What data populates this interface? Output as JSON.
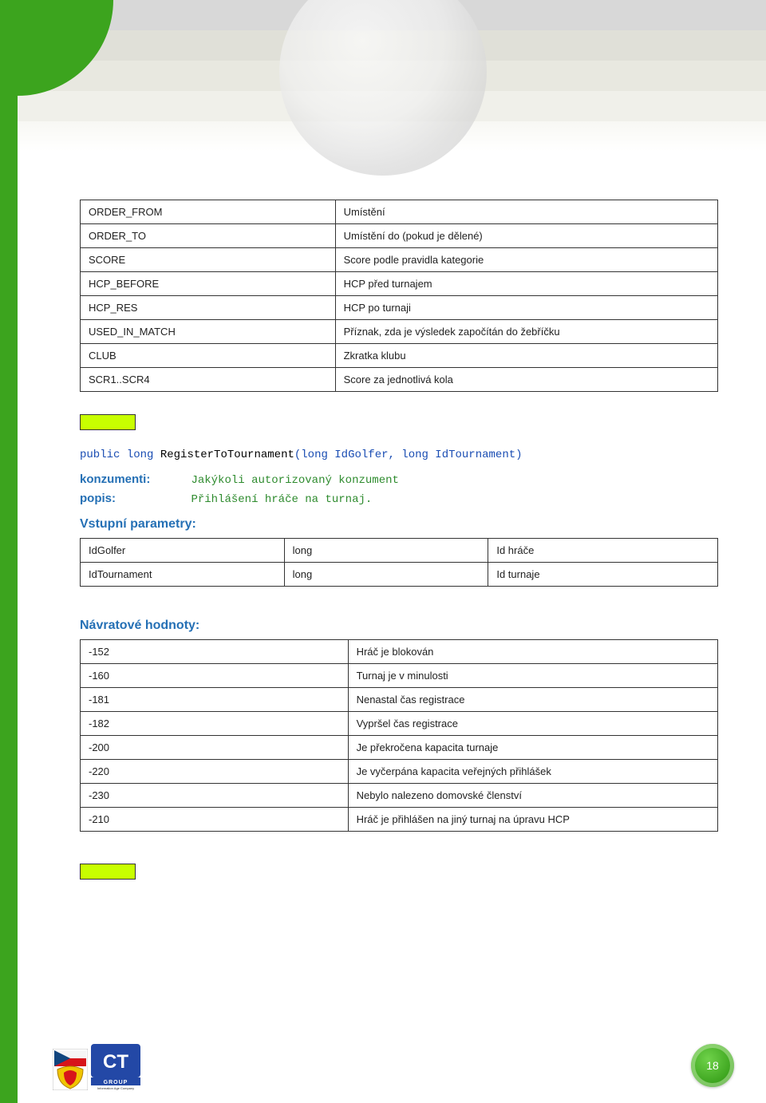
{
  "colors": {
    "left_border": "#3ca41e",
    "highlight_bar": "#c8ff00",
    "section_title": "#2570b5",
    "code_keyword": "#1a4db3",
    "code_mono_green": "#2e8b2e",
    "table_border": "#333333",
    "text": "#222222"
  },
  "table1": {
    "rows": [
      {
        "col1": "ORDER_FROM",
        "col2": "Umístění"
      },
      {
        "col1": "ORDER_TO",
        "col2": "Umístění do (pokud je dělené)"
      },
      {
        "col1": "SCORE",
        "col2": "Score podle pravidla kategorie"
      },
      {
        "col1": "HCP_BEFORE",
        "col2": "HCP před turnajem"
      },
      {
        "col1": "HCP_RES",
        "col2": "HCP po turnaji"
      },
      {
        "col1": "USED_IN_MATCH",
        "col2": "Příznak, zda je výsledek započítán do žebříčku"
      },
      {
        "col1": "CLUB",
        "col2": "Zkratka klubu"
      },
      {
        "col1": "SCR1..SCR4",
        "col2": "Score za jednotlivá kola"
      }
    ],
    "col1_width_pct": 40
  },
  "method": {
    "signature_html_parts": {
      "public": "public",
      "ret_type": "long",
      "name": "RegisterToTournament",
      "params": "(long IdGolfer, long IdTournament)"
    },
    "konzumenti_label": "konzumenti:",
    "konzumenti_val": "Jakýkoli autorizovaný konzument",
    "popis_label": "popis:",
    "popis_val": "Přihlášení hráče na turnaj."
  },
  "inputs_title": "Vstupní parametry:",
  "inputs": {
    "rows": [
      {
        "c1": "IdGolfer",
        "c2": "long",
        "c3": "Id hráče"
      },
      {
        "c1": "IdTournament",
        "c2": "long",
        "c3": "Id turnaje"
      }
    ],
    "col_widths_pct": [
      32,
      32,
      36
    ]
  },
  "returns_title": "Návratové hodnoty:",
  "returns": {
    "rows": [
      {
        "c1": "-152",
        "c2": "Hráč je blokován"
      },
      {
        "c1": "-160",
        "c2": "Turnaj je v minulosti"
      },
      {
        "c1": "-181",
        "c2": "Nenastal čas registrace"
      },
      {
        "c1": "-182",
        "c2": "Vypršel čas registrace"
      },
      {
        "c1": "-200",
        "c2": "Je překročena kapacita turnaje"
      },
      {
        "c1": "-220",
        "c2": "Je vyčerpána kapacita veřejných přihlášek"
      },
      {
        "c1": "-230",
        "c2": "Nebylo nalezeno domovské členství"
      },
      {
        "c1": "-210",
        "c2": "Hráč je přihlášen na jiný turnaj na úpravu HCP"
      }
    ],
    "col1_width_pct": 42
  },
  "page_number": "18"
}
